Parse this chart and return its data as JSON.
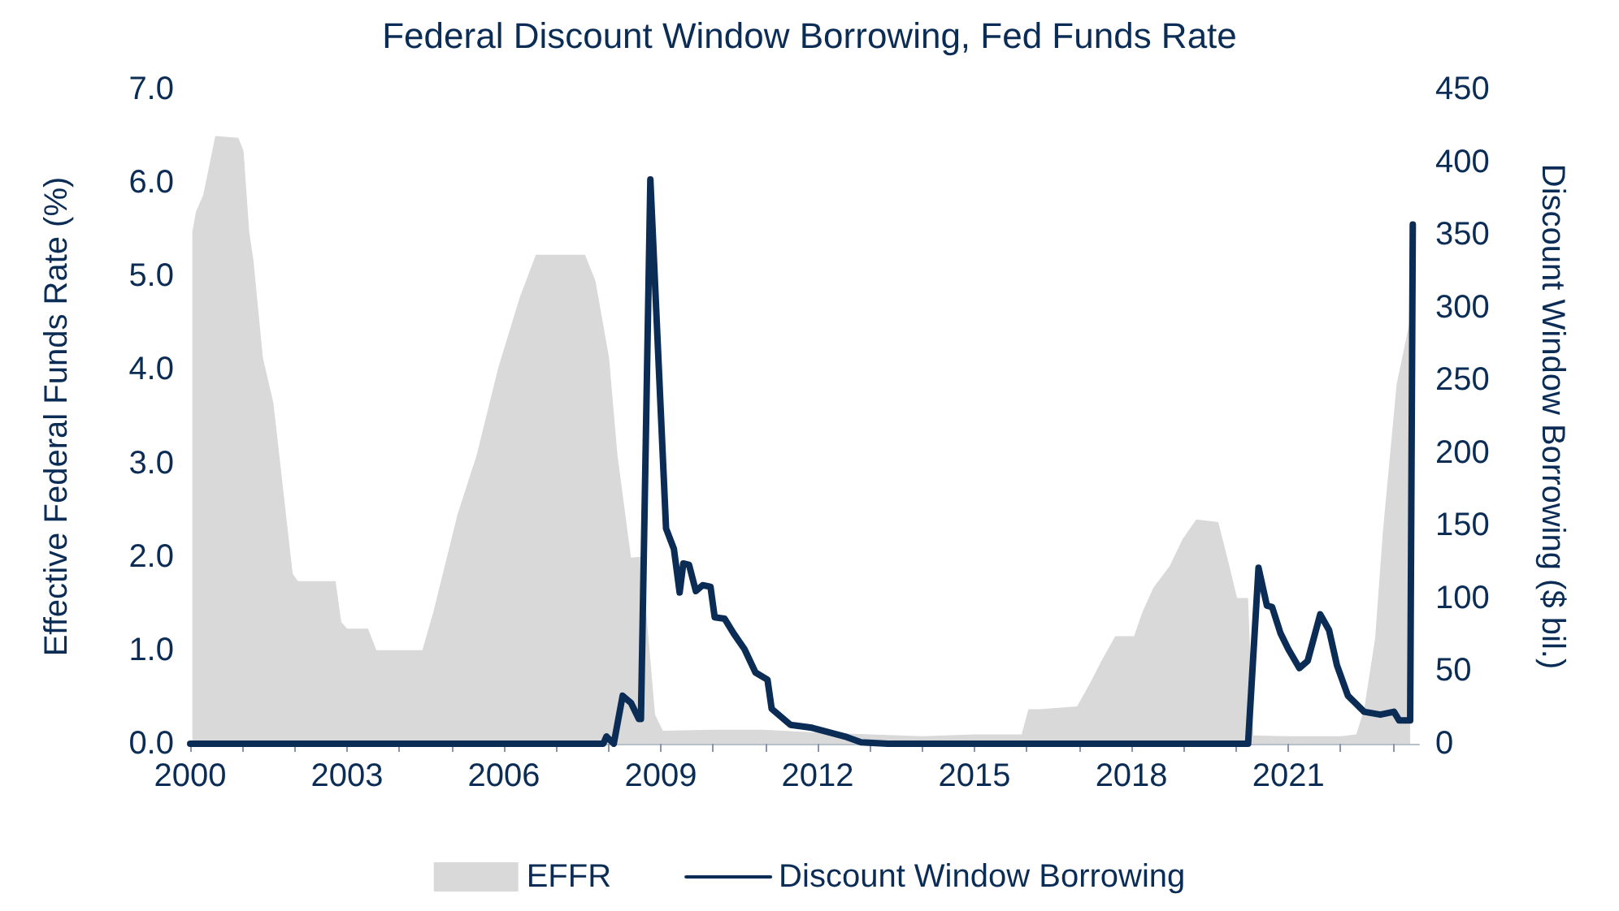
{
  "chart_data": {
    "type": "line",
    "title": "Federal Discount Window Borrowing, Fed Funds Rate",
    "ylabel": "Effective Federal Funds Rate (%)",
    "y2label": "Discount Window Borrowing ($ bil.)",
    "xlim": [
      2000,
      2023.5
    ],
    "xticks": [
      2000,
      {
        "value": 2001,
        "label": null
      },
      {
        "value": 2002,
        "label": null
      },
      2003,
      {
        "value": 2004,
        "label": null
      },
      {
        "value": 2005,
        "label": null
      },
      2006,
      {
        "value": 2007,
        "label": null
      },
      {
        "value": 2008,
        "label": null
      },
      2009,
      {
        "value": 2010,
        "label": null
      },
      {
        "value": 2011,
        "label": null
      },
      2012,
      {
        "value": 2013,
        "label": null
      },
      {
        "value": 2014,
        "label": null
      },
      2015,
      {
        "value": 2016,
        "label": null
      },
      {
        "value": 2017,
        "label": null
      },
      2018,
      {
        "value": 2019,
        "label": null
      },
      {
        "value": 2020,
        "label": null
      },
      2021,
      {
        "value": 2022,
        "label": null
      },
      {
        "value": 2023,
        "label": null
      }
    ],
    "ylim": [
      0,
      7
    ],
    "yticks": [
      {
        "value": 0,
        "label": "0.0"
      },
      {
        "value": 1,
        "label": "1.0"
      },
      {
        "value": 2,
        "label": "2.0"
      },
      {
        "value": 3,
        "label": "3.0"
      },
      {
        "value": 4,
        "label": "4.0"
      },
      {
        "value": 5,
        "label": "5.0"
      },
      {
        "value": 6,
        "label": "6.0"
      },
      {
        "value": 7,
        "label": "7.0"
      }
    ],
    "y2lim": [
      0,
      450
    ],
    "y2ticks": [
      0,
      50,
      100,
      150,
      200,
      250,
      300,
      350,
      400,
      450
    ],
    "grid": false,
    "legend": "bottom",
    "marker": "none",
    "line_style": "solid",
    "series": [
      {
        "name": "EFFR",
        "type": "area",
        "color": "#d9d9d9",
        "x": [
          2000.04,
          2000.11,
          2000.25,
          2000.48,
          2000.92,
          2001.02,
          2001.13,
          2001.21,
          2001.39,
          2001.59,
          2001.96,
          2002.06,
          2002.78,
          2002.89,
          2003.0,
          2003.4,
          2003.56,
          2004.44,
          2004.65,
          2005.11,
          2005.48,
          2005.89,
          2006.3,
          2006.61,
          2007.55,
          2007.75,
          2008.01,
          2008.17,
          2008.43,
          2008.63,
          2008.89,
          2009.04,
          2010.0,
          2010.96,
          2012.0,
          2013.0,
          2014.0,
          2015.0,
          2015.9,
          2016.03,
          2016.24,
          2016.96,
          2017.22,
          2017.43,
          2017.69,
          2018.05,
          2018.21,
          2018.42,
          2018.73,
          2018.98,
          2019.24,
          2019.66,
          2019.86,
          2020.02,
          2020.23,
          2020.33,
          2021.0,
          2022.0,
          2022.3,
          2022.45,
          2022.66,
          2022.81,
          2023.07,
          2023.33
        ],
        "values": [
          5.47,
          5.69,
          5.87,
          6.5,
          6.48,
          6.34,
          5.47,
          5.17,
          4.13,
          3.65,
          1.82,
          1.74,
          1.74,
          1.3,
          1.23,
          1.23,
          1.0,
          1.0,
          1.41,
          2.45,
          3.09,
          4.02,
          4.77,
          5.23,
          5.23,
          4.95,
          4.13,
          3.09,
          1.99,
          2.0,
          0.31,
          0.14,
          0.15,
          0.15,
          0.12,
          0.1,
          0.08,
          0.1,
          0.1,
          0.37,
          0.37,
          0.4,
          0.66,
          0.89,
          1.15,
          1.15,
          1.41,
          1.67,
          1.9,
          2.19,
          2.4,
          2.37,
          1.93,
          1.56,
          1.56,
          0.09,
          0.08,
          0.08,
          0.1,
          0.37,
          1.13,
          2.28,
          3.84,
          4.54
        ]
      },
      {
        "name": "Discount Window Borrowing",
        "axis": "y2",
        "color": "#0b2c55",
        "x": [
          2000.0,
          2007.9,
          2007.96,
          2008.1,
          2008.27,
          2008.43,
          2008.58,
          2008.62,
          2008.8,
          2009.1,
          2009.25,
          2009.36,
          2009.43,
          2009.54,
          2009.67,
          2009.8,
          2009.95,
          2010.03,
          2010.22,
          2010.39,
          2010.6,
          2010.81,
          2011.04,
          2011.12,
          2011.48,
          2011.89,
          2012.52,
          2012.83,
          2013.34,
          2020.23,
          2020.43,
          2020.59,
          2020.69,
          2020.85,
          2021.0,
          2021.21,
          2021.37,
          2021.61,
          2021.78,
          2021.93,
          2022.14,
          2022.45,
          2022.76,
          2023.02,
          2023.12,
          2023.33,
          2023.38
        ],
        "values": [
          0,
          0,
          5,
          0,
          33,
          28,
          17,
          17,
          388,
          148,
          134,
          104,
          124,
          123,
          105,
          109,
          108,
          87,
          86,
          76,
          65,
          49,
          44,
          24,
          13,
          11,
          5,
          1,
          0,
          0,
          121,
          95,
          94,
          76,
          65,
          52,
          57,
          89,
          78,
          54,
          33,
          22,
          20,
          22,
          16,
          16,
          357
        ]
      }
    ]
  }
}
